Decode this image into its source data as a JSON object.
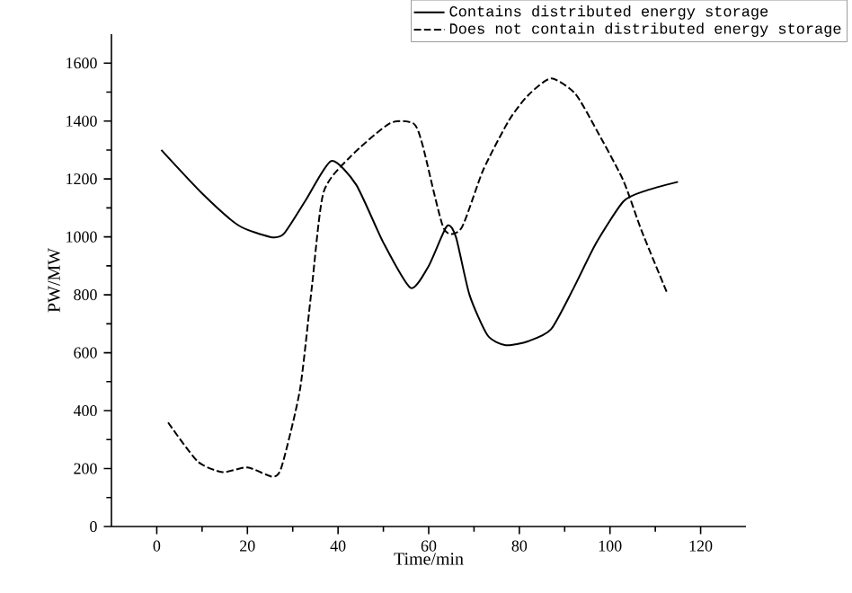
{
  "chart_data": {
    "type": "line",
    "xlabel": "Time/min",
    "ylabel": "PW/MW",
    "xlim": [
      -10,
      130
    ],
    "ylim": [
      0,
      1700
    ],
    "xticks": [
      0,
      20,
      40,
      60,
      80,
      100,
      120
    ],
    "yticks": [
      0,
      200,
      400,
      600,
      800,
      1000,
      1200,
      1400,
      1600
    ],
    "legend": "top right",
    "grid": false,
    "marker": "none",
    "series": [
      {
        "name": "Contains distributed energy storage",
        "color": "#000000",
        "line_style": "solid",
        "x": [
          1,
          10,
          18,
          25,
          28,
          33,
          38.5,
          44,
          50,
          56,
          60,
          64,
          66,
          69,
          73,
          77,
          82,
          87,
          92,
          97,
          103,
          108,
          115
        ],
        "values": [
          1300,
          1150,
          1040,
          1000,
          1010,
          1130,
          1262,
          1180,
          980,
          824,
          900,
          1037,
          1000,
          800,
          660,
          626,
          640,
          681,
          824,
          980,
          1123,
          1160,
          1190
        ]
      },
      {
        "name": "Does not contain distributed energy storage",
        "color": "#000000",
        "line_style": "dashed",
        "x": [
          2.5,
          9,
          14.5,
          20,
          25.6,
          27.6,
          31.6,
          34.2,
          36.8,
          42.8,
          51.4,
          56.6,
          58.6,
          63.3,
          67.2,
          72,
          77.7,
          82,
          87,
          92.3,
          97,
          102.9,
          107,
          112.7
        ],
        "values": [
          359,
          225,
          188,
          204,
          172,
          209,
          473,
          824,
          1154,
          1278,
          1392,
          1392,
          1320,
          1030,
          1030,
          1230,
          1402,
          1490,
          1547,
          1495,
          1370,
          1196,
          1020,
          803
        ]
      }
    ]
  }
}
